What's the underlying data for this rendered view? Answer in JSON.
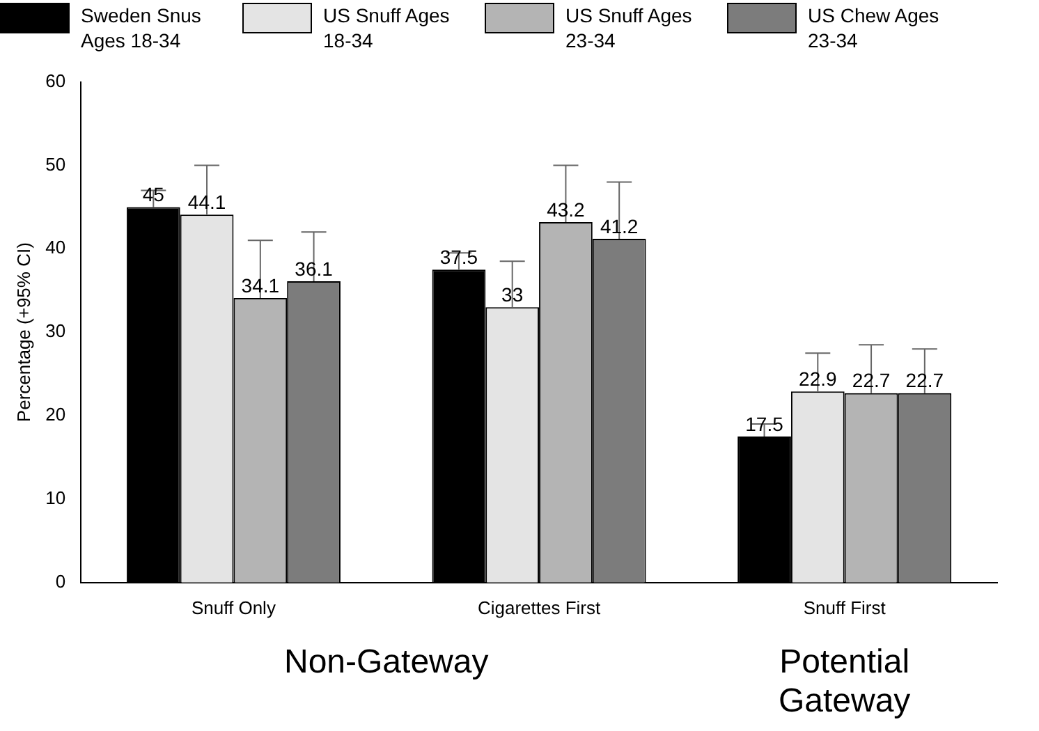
{
  "chart_data": {
    "type": "bar",
    "ylabel": "Percentage (+95% CI)",
    "categories": [
      "Snuff Only",
      "Cigarettes First",
      "Snuff First"
    ],
    "series": [
      {
        "name": "Sweden Snus Ages 18-34",
        "color": "#000000",
        "values": [
          45,
          37.5,
          17.5
        ],
        "errors": [
          [
            45,
            47
          ],
          [
            37.5,
            39.5
          ],
          [
            17.5,
            19
          ]
        ]
      },
      {
        "name": "US Snuff Ages 18-34",
        "color": "#e4e4e4",
        "values": [
          44.1,
          33,
          22.9
        ],
        "errors": [
          [
            44.1,
            50
          ],
          [
            33,
            38.5
          ],
          [
            22.9,
            27.5
          ]
        ]
      },
      {
        "name": "US Snuff Ages 23-34",
        "color": "#b4b4b4",
        "values": [
          34.1,
          43.2,
          22.7
        ],
        "errors": [
          [
            34.1,
            41
          ],
          [
            43.2,
            50
          ],
          [
            22.7,
            28.5
          ]
        ]
      },
      {
        "name": "US Chew Ages 23-34",
        "color": "#7c7c7c",
        "values": [
          36.1,
          41.2,
          22.7
        ],
        "errors": [
          [
            36.1,
            42
          ],
          [
            41.2,
            48
          ],
          [
            22.7,
            28
          ]
        ]
      }
    ],
    "ylim": [
      0,
      60
    ],
    "yticks": [
      0,
      10,
      20,
      30,
      40,
      50,
      60
    ],
    "grid": false,
    "legend": "top",
    "data_labels": true,
    "annotations": [
      "Non-Gateway",
      "Potential Gateway"
    ]
  }
}
